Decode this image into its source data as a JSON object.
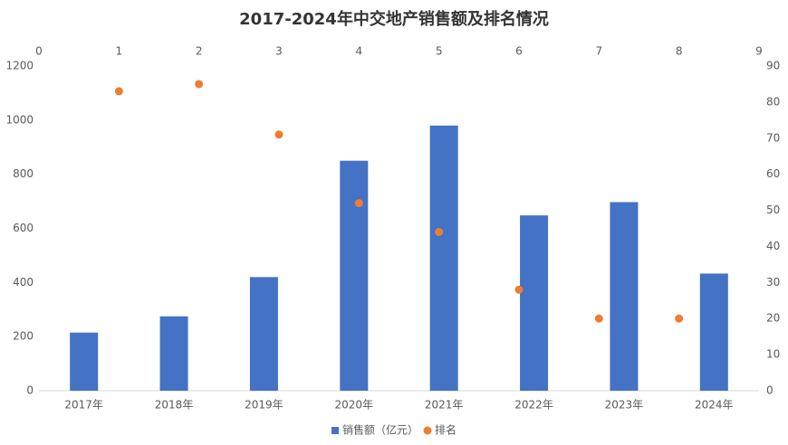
{
  "chart_data": {
    "type": "bar",
    "title": "2017-2024年中交地产销售额及排名情况",
    "categories": [
      "2017年",
      "2018年",
      "2019年",
      "2020年",
      "2021年",
      "2022年",
      "2023年",
      "2024年"
    ],
    "series": [
      {
        "name": "销售额（亿元）",
        "type": "bar",
        "color": "#4472c4",
        "values": [
          215,
          275,
          420,
          850,
          980,
          648,
          697,
          433
        ]
      },
      {
        "name": "排名",
        "type": "scatter",
        "color": "#ed7d31",
        "axis": "y2",
        "x": [
          1,
          2,
          3,
          4,
          5,
          6,
          7,
          8
        ],
        "values": [
          83,
          85,
          71,
          52,
          44,
          28,
          20,
          20
        ]
      }
    ],
    "ylim": [
      0,
      1200
    ],
    "yticks": [
      0,
      200,
      400,
      600,
      800,
      1000,
      1200
    ],
    "y2lim": [
      0,
      90
    ],
    "y2ticks": [
      0,
      10,
      20,
      30,
      40,
      50,
      60,
      70,
      80,
      90
    ],
    "xlim": [
      0,
      9
    ],
    "xticks": [
      0,
      1,
      2,
      3,
      4,
      5,
      6,
      7,
      8,
      9
    ],
    "grid": false,
    "legend": "bottom"
  }
}
